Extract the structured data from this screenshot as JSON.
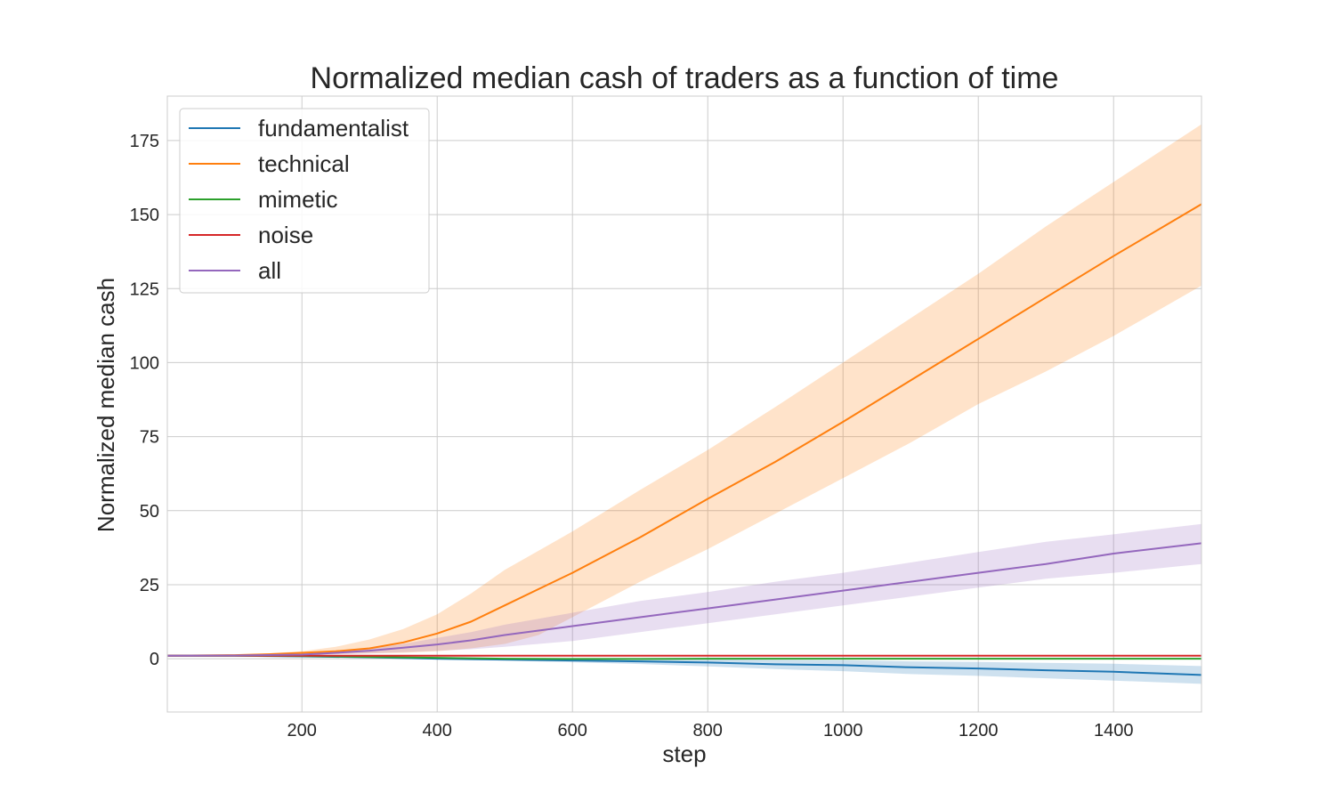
{
  "chart_data": {
    "type": "line",
    "title": "Normalized median cash of traders as a function of time",
    "xlabel": "step",
    "ylabel": "Normalized median cash",
    "xlim": [
      1,
      1530
    ],
    "ylim": [
      -18,
      190
    ],
    "xticks": [
      200,
      400,
      600,
      800,
      1000,
      1200,
      1400
    ],
    "yticks": [
      0,
      25,
      50,
      75,
      100,
      125,
      150,
      175
    ],
    "grid": true,
    "legend_position": "top-left",
    "series": [
      {
        "name": "fundamentalist",
        "color": "#1f77b4",
        "x": [
          1,
          100,
          200,
          300,
          400,
          500,
          600,
          700,
          800,
          900,
          1000,
          1100,
          1200,
          1300,
          1400,
          1530
        ],
        "y": [
          1,
          1,
          0.8,
          0.5,
          0,
          -0.3,
          -0.6,
          -0.9,
          -1.3,
          -1.9,
          -2.2,
          -2.9,
          -3.3,
          -3.9,
          -4.4,
          -5.5
        ],
        "lower": [
          1,
          0.9,
          0.6,
          0.2,
          -0.3,
          -0.7,
          -1.2,
          -1.8,
          -2.6,
          -3.5,
          -4.2,
          -5.2,
          -5.8,
          -6.6,
          -7.4,
          -8.5
        ],
        "upper": [
          1,
          1.1,
          1.0,
          0.8,
          0.3,
          0.1,
          0,
          -0.1,
          -0.2,
          -0.4,
          -0.5,
          -0.9,
          -1.1,
          -1.4,
          -1.7,
          -2.5
        ]
      },
      {
        "name": "technical",
        "color": "#ff7f0e",
        "x": [
          1,
          100,
          150,
          200,
          250,
          300,
          350,
          400,
          450,
          500,
          550,
          600,
          700,
          800,
          900,
          1000,
          1100,
          1200,
          1300,
          1400,
          1530
        ],
        "y": [
          1,
          1.2,
          1.5,
          2,
          2.5,
          3.5,
          5.5,
          8.5,
          12.5,
          18,
          23.5,
          29,
          41,
          54,
          66.5,
          80,
          94,
          108,
          122,
          136,
          153.5
        ],
        "lower": [
          1,
          1.1,
          1.2,
          1.5,
          1.6,
          1.8,
          2,
          2.5,
          3.5,
          5,
          8,
          14,
          26,
          37,
          49,
          61,
          73,
          86,
          97,
          109,
          126
        ],
        "upper": [
          1,
          1.3,
          1.8,
          2.5,
          4,
          6.5,
          10,
          15,
          22,
          30,
          36.5,
          43,
          57,
          70.5,
          85,
          100,
          115,
          130,
          146,
          161,
          180.5
        ]
      },
      {
        "name": "mimetic",
        "color": "#2ca02c",
        "x": [
          1,
          100,
          200,
          300,
          400,
          500,
          600,
          700,
          800,
          1000,
          1200,
          1400,
          1530
        ],
        "y": [
          1,
          1,
          0.9,
          0.6,
          0.3,
          0,
          -0.1,
          -0.1,
          0,
          0,
          0,
          0,
          0
        ],
        "lower": [
          1,
          0.9,
          0.8,
          0.4,
          0.1,
          -0.2,
          -0.3,
          -0.3,
          -0.2,
          -0.2,
          -0.2,
          -0.2,
          -0.2
        ],
        "upper": [
          1,
          1.1,
          1.0,
          0.8,
          0.5,
          0.2,
          0.1,
          0.1,
          0.2,
          0.2,
          0.2,
          0.2,
          0.2
        ]
      },
      {
        "name": "noise",
        "color": "#d62728",
        "x": [
          1,
          200,
          400,
          600,
          800,
          1000,
          1200,
          1400,
          1530
        ],
        "y": [
          1,
          1,
          1,
          1,
          1,
          1,
          1,
          1,
          1
        ],
        "lower": [
          1,
          1,
          1,
          1,
          1,
          1,
          1,
          1,
          1
        ],
        "upper": [
          1,
          1,
          1,
          1,
          1,
          1,
          1,
          1,
          1
        ]
      },
      {
        "name": "all",
        "color": "#9467bd",
        "x": [
          1,
          100,
          200,
          250,
          300,
          350,
          400,
          450,
          500,
          550,
          600,
          700,
          800,
          900,
          1000,
          1100,
          1200,
          1300,
          1400,
          1530
        ],
        "y": [
          1,
          1.1,
          1.4,
          2,
          2.7,
          3.7,
          4.8,
          6.2,
          8,
          9.5,
          11,
          14,
          17,
          20,
          23,
          26,
          29,
          32,
          35.5,
          39
        ],
        "lower": [
          1,
          1,
          1.2,
          1.5,
          1.8,
          2.2,
          2.7,
          3.2,
          4,
          5,
          6,
          9,
          12,
          15,
          18,
          21,
          24,
          27,
          29,
          32
        ],
        "upper": [
          1,
          1.2,
          1.7,
          2.5,
          3.5,
          5,
          7,
          9,
          11.5,
          13.5,
          15.5,
          19.5,
          22.5,
          26,
          29,
          32.5,
          36,
          39.5,
          42,
          45.5
        ]
      }
    ]
  }
}
